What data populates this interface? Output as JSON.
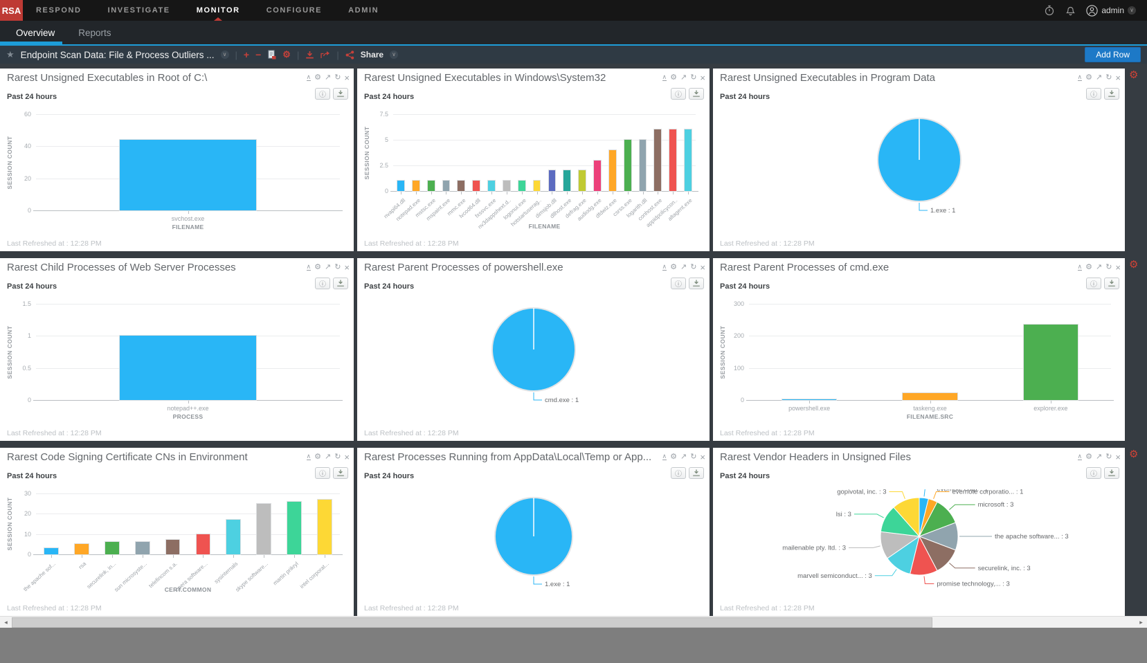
{
  "topnav": {
    "logo": "RSA",
    "items": [
      {
        "label": "RESPOND"
      },
      {
        "label": "INVESTIGATE"
      },
      {
        "label": "MONITOR"
      },
      {
        "label": "CONFIGURE"
      },
      {
        "label": "ADMIN"
      }
    ],
    "user_label": "admin"
  },
  "tabs": [
    {
      "label": "Overview"
    },
    {
      "label": "Reports"
    }
  ],
  "toolbar": {
    "title": "Endpoint Scan Data: File & Process Outliers ...",
    "share_label": "Share",
    "add_row_label": "Add Row"
  },
  "icons": {
    "collapse": "∧",
    "settings": "⚙",
    "expand": "↗",
    "refresh": "↻",
    "close": "×",
    "info": "ⓘ",
    "star": "★",
    "menu_chevron": "∨",
    "plus": "+",
    "minus": "−",
    "row_settings": "⚙",
    "scroll_left": "◂",
    "scroll_right": "▸"
  },
  "colors": {
    "accent_blue": "#1d9dd9",
    "brand_red": "#be3a34",
    "button_blue": "#1d79c7",
    "toolbar_bg": "#2f3a44",
    "dashboard_bg": "#363c42"
  },
  "panels": [
    {
      "title": "Rarest Unsigned Executables in Root of C:\\",
      "time_range": "Past 24 hours",
      "last_refreshed": "Last Refreshed at : 12:28 PM",
      "chart_data": {
        "type": "bar",
        "categories": [
          "svchost.exe"
        ],
        "values": [
          44
        ],
        "colors": [
          "#29b6f6"
        ],
        "xlabel": "FILENAME",
        "ylabel": "SESSION COUNT",
        "yticks": [
          0,
          20,
          40,
          60
        ],
        "ylim": [
          0,
          60
        ]
      }
    },
    {
      "title": "Rarest Unsigned Executables in Windows\\System32",
      "time_range": "Past 24 hours",
      "last_refreshed": "Last Refreshed at : 12:28 PM",
      "chart_data": {
        "type": "bar",
        "categories": [
          "nvapi64.dll",
          "notepad.exe",
          "mstsc.exe",
          "mspaint.exe",
          "mmc.exe",
          "lvcod64.dll",
          "fxssvc.exe",
          "nv3dappshext.d..",
          "logonui.exe",
          "hotstartuserag..",
          "dimsjob.dll",
          "dllhost.exe",
          "defrag.exe",
          "audiodg.exe",
          "dfdwiz.exe",
          "csrss.exe",
          "logarith.dll",
          "conhost.exe",
          "appidpolicycon..",
          "altagent.exe"
        ],
        "values": [
          1,
          1,
          1,
          1,
          1,
          1,
          1,
          1,
          1,
          1,
          2,
          2,
          2,
          3,
          4,
          5,
          5,
          6,
          6,
          6
        ],
        "colors": [
          "#29b6f6",
          "#ffa726",
          "#4caf50",
          "#90a4ae",
          "#8d6e63",
          "#ef5350",
          "#4dd0e1",
          "#bdbdbd",
          "#3dd598",
          "#fdd835",
          "#5c6bc0",
          "#26a69a",
          "#c0ca33",
          "#ec407a",
          "#ffa726",
          "#4caf50",
          "#90a4ae",
          "#8d6e63",
          "#ef5350",
          "#4dd0e1"
        ],
        "xlabel": "FILENAME",
        "ylabel": "SESSION COUNT",
        "yticks": [
          0,
          2.5,
          5,
          7.5
        ],
        "ylim": [
          0,
          7.5
        ]
      }
    },
    {
      "title": "Rarest Unsigned Executables in Program Data",
      "time_range": "Past 24 hours",
      "last_refreshed": "Last Refreshed at : 12:28 PM",
      "chart_data": {
        "type": "pie",
        "slices": [
          {
            "label": "1.exe : 1",
            "value": 1,
            "color": "#29b6f6"
          }
        ]
      }
    },
    {
      "title": "Rarest Child Processes of Web Server Processes",
      "time_range": "Past 24 hours",
      "last_refreshed": "Last Refreshed at : 12:28 PM",
      "chart_data": {
        "type": "bar",
        "categories": [
          "notepad++.exe"
        ],
        "values": [
          1
        ],
        "colors": [
          "#29b6f6"
        ],
        "xlabel": "PROCESS",
        "ylabel": "SESSION COUNT",
        "yticks": [
          0,
          0.5,
          1,
          1.5
        ],
        "ylim": [
          0,
          1.5
        ]
      }
    },
    {
      "title": "Rarest Parent Processes of powershell.exe",
      "time_range": "Past 24 hours",
      "last_refreshed": "Last Refreshed at : 12:28 PM",
      "chart_data": {
        "type": "pie",
        "slices": [
          {
            "label": "cmd.exe : 1",
            "value": 1,
            "color": "#29b6f6"
          }
        ]
      }
    },
    {
      "title": "Rarest Parent Processes of cmd.exe",
      "time_range": "Past 24 hours",
      "last_refreshed": "Last Refreshed at : 12:28 PM",
      "chart_data": {
        "type": "bar",
        "categories": [
          "powershell.exe",
          "taskeng.exe",
          "explorer.exe"
        ],
        "values": [
          2,
          22,
          235
        ],
        "colors": [
          "#29b6f6",
          "#ffa726",
          "#4caf50"
        ],
        "xlabel": "FILENAME.SRC",
        "ylabel": "SESSION COUNT",
        "yticks": [
          0,
          100,
          200,
          300
        ],
        "ylim": [
          0,
          300
        ]
      }
    },
    {
      "title": "Rarest Code Signing Certificate CNs in Environment",
      "time_range": "Past 24 hours",
      "last_refreshed": "Last Refreshed at : 12:28 PM",
      "chart_data": {
        "type": "bar",
        "categories": [
          "the apache sof...",
          "rsa",
          "securelink, in...",
          "sun microsyste...",
          "telefincom s.a.",
          "opera software...",
          "sysinternals",
          "skype software...",
          "martin prikryl",
          "intel corporat..."
        ],
        "values": [
          3,
          5,
          6,
          6,
          7,
          10,
          17,
          25,
          26,
          27
        ],
        "colors": [
          "#29b6f6",
          "#ffa726",
          "#4caf50",
          "#90a4ae",
          "#8d6e63",
          "#ef5350",
          "#4dd0e1",
          "#bdbdbd",
          "#3dd598",
          "#fdd835"
        ],
        "xlabel": "CERT.COMMON",
        "ylabel": "SESSION COUNT",
        "yticks": [
          0,
          10,
          20,
          30
        ],
        "ylim": [
          0,
          30
        ]
      }
    },
    {
      "title": "Rarest Processes Running from AppData\\Local\\Temp or App...",
      "time_range": "Past 24 hours",
      "last_refreshed": "Last Refreshed at : 12:28 PM",
      "chart_data": {
        "type": "pie",
        "slices": [
          {
            "label": "1.exe : 1",
            "value": 1,
            "color": "#29b6f6"
          }
        ]
      }
    },
    {
      "title": "Rarest Vendor Headers in Unsigned Files",
      "time_range": "Past 24 hours",
      "last_refreshed": "Last Refreshed at : 12:28 PM",
      "chart_data": {
        "type": "pie",
        "slices": [
          {
            "label": "evernote corp. : 1",
            "value": 1,
            "color": "#29b6f6"
          },
          {
            "label": "evernote corporatio... : 1",
            "value": 1,
            "color": "#ffa726"
          },
          {
            "label": "microsoft : 3",
            "value": 3,
            "color": "#4caf50"
          },
          {
            "label": "the apache software... : 3",
            "value": 3,
            "color": "#90a4ae"
          },
          {
            "label": "securelink, inc. : 3",
            "value": 3,
            "color": "#8d6e63"
          },
          {
            "label": "promise technology,... : 3",
            "value": 3,
            "color": "#ef5350"
          },
          {
            "label": "marvell semiconduct... : 3",
            "value": 3,
            "color": "#4dd0e1"
          },
          {
            "label": "mailenable pty. ltd. : 3",
            "value": 3,
            "color": "#bdbdbd"
          },
          {
            "label": "lsi : 3",
            "value": 3,
            "color": "#3dd598"
          },
          {
            "label": "gopivotal, inc. : 3",
            "value": 3,
            "color": "#fdd835"
          }
        ]
      }
    }
  ]
}
